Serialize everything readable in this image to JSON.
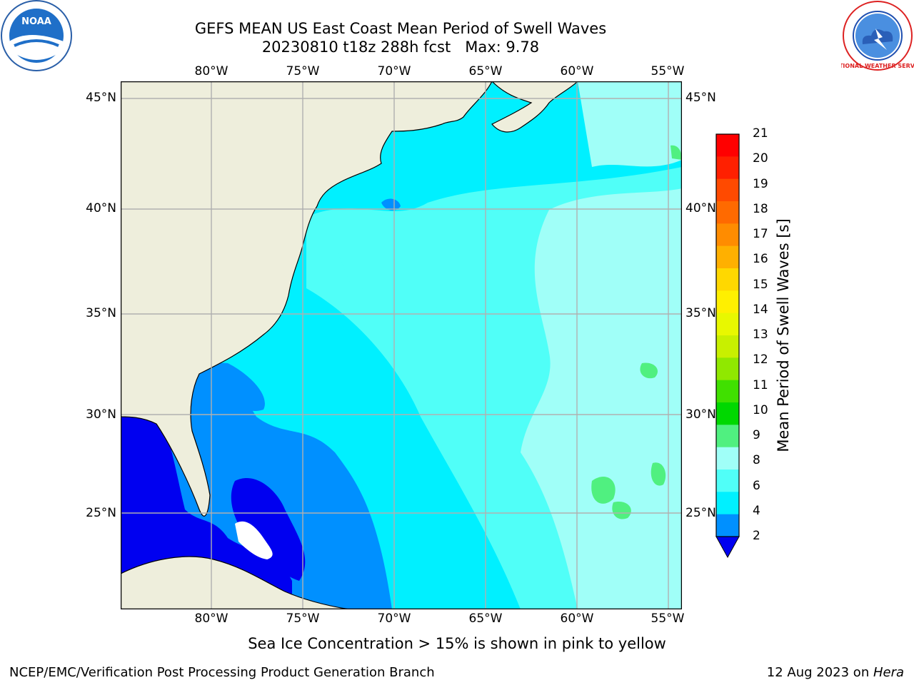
{
  "title": {
    "line1": "GEFS MEAN US East Coast Mean Period of Swell Waves",
    "line2": "20230810 t18z 288h fcst   Max: 9.78"
  },
  "logos": {
    "left": "NOAA",
    "right": "NATIONAL WEATHER SERVICE"
  },
  "map": {
    "lon_labels": [
      "80°W",
      "75°W",
      "70°W",
      "65°W",
      "60°W",
      "55°W"
    ],
    "lat_labels": [
      "45°N",
      "40°N",
      "35°N",
      "30°N",
      "25°N"
    ],
    "land_color": "#eeeedc",
    "grid_color": "#b0b0b0"
  },
  "colorbar": {
    "label": "Mean Period of Swell Waves [s]",
    "ticks": [
      "21",
      "20",
      "19",
      "18",
      "17",
      "16",
      "15",
      "14",
      "13",
      "12",
      "11",
      "10",
      "9",
      "8",
      "6",
      "4",
      "2"
    ],
    "colors": [
      "#ff0000",
      "#ff2000",
      "#ff4a00",
      "#ff6a00",
      "#ff8c00",
      "#ffb000",
      "#ffd800",
      "#fff000",
      "#e8f800",
      "#c8f000",
      "#90e800",
      "#40e000",
      "#00d800",
      "#50f080",
      "#a0fff8",
      "#50fff8",
      "#00f0ff",
      "#0090ff"
    ]
  },
  "note": "Sea Ice Concentration > 15% is shown in pink to yellow",
  "footer": {
    "left": "NCEP/EMC/Verification Post Processing Product Generation Branch",
    "right_date": "12 Aug 2023 on ",
    "right_machine": "Hera"
  }
}
